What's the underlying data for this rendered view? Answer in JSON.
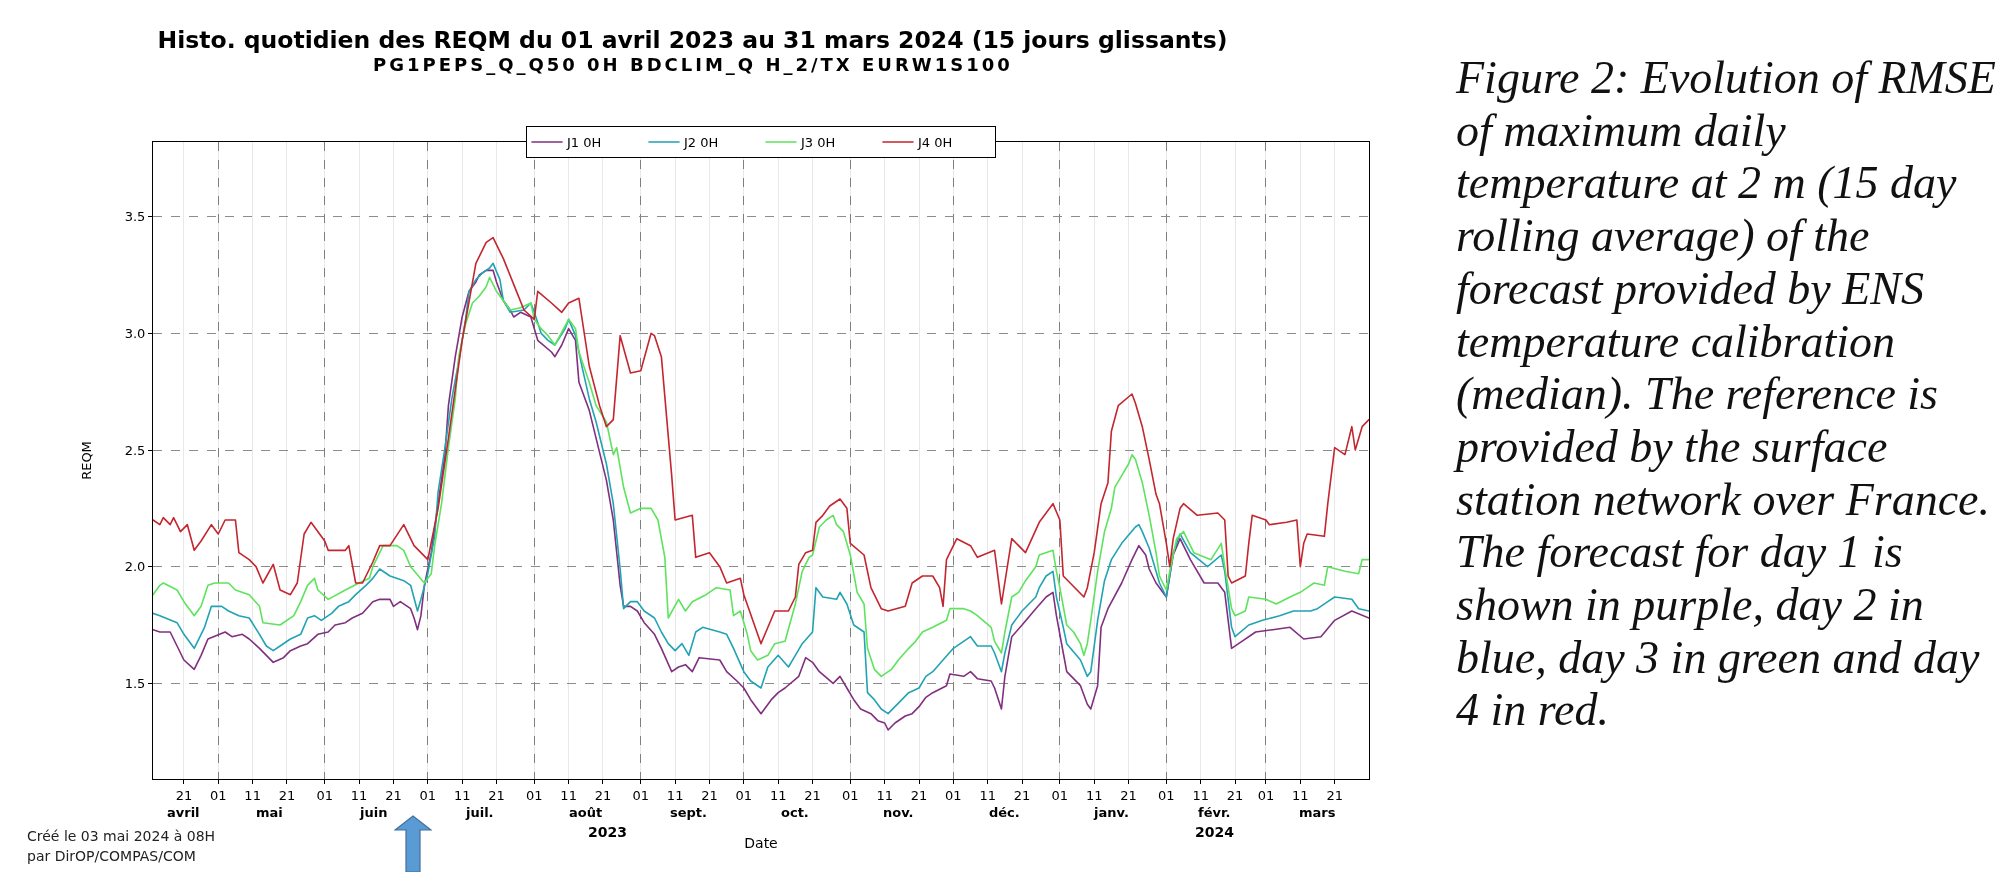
{
  "chart_data": {
    "type": "line",
    "title": "Histo. quotidien des REQM du 01 avril 2023 au 31 mars 2024 (15 jours glissants)",
    "subtitle": "PG1PEPS_Q_Q50 0H BDCLIM_Q H_2/TX EURW1S100",
    "xlabel": "Date",
    "ylabel": "REQM",
    "annotations": [
      "Créé le 03 mai 2024 à 08H",
      "par DirOP/COMPAS/COM",
      "Figure 2: Evolution of RMSE of maximum daily temperature at 2 m (15 day rolling average) of the forecast provided by ENS temperature calibration (median). The reference is provided by the surface station network over France. The forecast for day 1 is shown in purple, day 2 in blue, day 3 in green and day 4 in red.",
      "2023",
      "2024"
    ],
    "xlim": [
      "2023-04-12",
      "2024-03-31"
    ],
    "xticks": [
      {
        "value": "2023-04-21",
        "label": "21"
      },
      {
        "value": "2023-05-01",
        "label": "01"
      },
      {
        "value": "2023-05-11",
        "label": "11"
      },
      {
        "value": "2023-05-21",
        "label": "21"
      },
      {
        "value": "2023-06-01",
        "label": "01"
      },
      {
        "value": "2023-06-11",
        "label": "11"
      },
      {
        "value": "2023-06-21",
        "label": "21"
      },
      {
        "value": "2023-07-01",
        "label": "01"
      },
      {
        "value": "2023-07-11",
        "label": "11"
      },
      {
        "value": "2023-07-21",
        "label": "21"
      },
      {
        "value": "2023-08-01",
        "label": "01"
      },
      {
        "value": "2023-08-11",
        "label": "11"
      },
      {
        "value": "2023-08-21",
        "label": "21"
      },
      {
        "value": "2023-09-01",
        "label": "01"
      },
      {
        "value": "2023-09-11",
        "label": "11"
      },
      {
        "value": "2023-09-21",
        "label": "21"
      },
      {
        "value": "2023-10-01",
        "label": "01"
      },
      {
        "value": "2023-10-11",
        "label": "11"
      },
      {
        "value": "2023-10-21",
        "label": "21"
      },
      {
        "value": "2023-11-01",
        "label": "01"
      },
      {
        "value": "2023-11-11",
        "label": "11"
      },
      {
        "value": "2023-11-21",
        "label": "21"
      },
      {
        "value": "2023-12-01",
        "label": "01"
      },
      {
        "value": "2023-12-11",
        "label": "11"
      },
      {
        "value": "2023-12-21",
        "label": "21"
      },
      {
        "value": "2024-01-01",
        "label": "01"
      },
      {
        "value": "2024-01-11",
        "label": "11"
      },
      {
        "value": "2024-01-21",
        "label": "21"
      },
      {
        "value": "2024-02-01",
        "label": "01"
      },
      {
        "value": "2024-02-11",
        "label": "11"
      },
      {
        "value": "2024-02-21",
        "label": "21"
      },
      {
        "value": "2024-03-01",
        "label": "01"
      },
      {
        "value": "2024-03-11",
        "label": "11"
      },
      {
        "value": "2024-03-21",
        "label": "21"
      }
    ],
    "x2lim": [
      "2023-04-12",
      "2024-03-31"
    ],
    "x2ticks": [
      {
        "value": "2023-04-21",
        "label": "avril"
      },
      {
        "value": "2023-05-16",
        "label": "mai"
      },
      {
        "value": "2023-06-15",
        "label": "juin"
      },
      {
        "value": "2023-07-16",
        "label": "juil."
      },
      {
        "value": "2023-08-16",
        "label": "août"
      },
      {
        "value": "2023-09-15",
        "label": "sept."
      },
      {
        "value": "2023-10-16",
        "label": "oct."
      },
      {
        "value": "2023-11-15",
        "label": "nov."
      },
      {
        "value": "2023-12-16",
        "label": "déc."
      },
      {
        "value": "2024-01-16",
        "label": "janv."
      },
      {
        "value": "2024-02-15",
        "label": "févr."
      },
      {
        "value": "2024-03-16",
        "label": "mars"
      }
    ],
    "ylim": [
      1.09,
      3.82
    ],
    "yticks": [
      1.5,
      {
        "value": 2,
        "label": "2.0"
      },
      2.5,
      {
        "value": 3,
        "label": "3.0"
      },
      3.5
    ],
    "grid": true,
    "legend": "top",
    "series": [
      {
        "name": "J1 0H",
        "color": "#80307f",
        "x": [
          "2023-04-12",
          "2023-04-14",
          "2023-04-17",
          "2023-04-19",
          "2023-04-21",
          "2023-04-24",
          "2023-04-26",
          "2023-04-28",
          "2023-05-03",
          "2023-05-05",
          "2023-05-08",
          "2023-05-10",
          "2023-05-13",
          "2023-05-15",
          "2023-05-17",
          "2023-05-20",
          "2023-05-22",
          "2023-05-25",
          "2023-05-27",
          "2023-05-30",
          "2023-06-02",
          "2023-06-04",
          "2023-06-07",
          "2023-06-09",
          "2023-06-12",
          "2023-06-15",
          "2023-06-17",
          "2023-06-20",
          "2023-06-21",
          "2023-06-23",
          "2023-06-26",
          "2023-06-27",
          "2023-06-28",
          "2023-06-29",
          "2023-06-30",
          "2023-07-02",
          "2023-07-04",
          "2023-07-06",
          "2023-07-07",
          "2023-07-09",
          "2023-07-11",
          "2023-07-13",
          "2023-07-15",
          "2023-07-16",
          "2023-07-18",
          "2023-07-20",
          "2023-07-21",
          "2023-07-23",
          "2023-07-25",
          "2023-07-26",
          "2023-07-28",
          "2023-07-31",
          "2023-08-02",
          "2023-08-06",
          "2023-08-07",
          "2023-08-09",
          "2023-08-11",
          "2023-08-13",
          "2023-08-14",
          "2023-08-17",
          "2023-08-19",
          "2023-08-22",
          "2023-08-24",
          "2023-08-26",
          "2023-08-27",
          "2023-08-29",
          "2023-08-31",
          "2023-09-02",
          "2023-09-05",
          "2023-09-07",
          "2023-09-10",
          "2023-09-12",
          "2023-09-14",
          "2023-09-16",
          "2023-09-18",
          "2023-09-24",
          "2023-09-26",
          "2023-09-29",
          "2023-10-01",
          "2023-10-03",
          "2023-10-06",
          "2023-10-09",
          "2023-10-11",
          "2023-10-13",
          "2023-10-17",
          "2023-10-19",
          "2023-10-21",
          "2023-10-23",
          "2023-10-27",
          "2023-10-29",
          "2023-10-31",
          "2023-11-02",
          "2023-11-04",
          "2023-11-07",
          "2023-11-09",
          "2023-11-11",
          "2023-11-12",
          "2023-11-14",
          "2023-11-17",
          "2023-11-19",
          "2023-11-21",
          "2023-11-23",
          "2023-11-25",
          "2023-11-29",
          "2023-11-30",
          "2023-12-04",
          "2023-12-06",
          "2023-12-08",
          "2023-12-12",
          "2023-12-13",
          "2023-12-15",
          "2023-12-16",
          "2023-12-18",
          "2023-12-21",
          "2023-12-25",
          "2023-12-28",
          "2023-12-30",
          "2023-12-31",
          "2024-01-02",
          "2024-01-03",
          "2024-01-07",
          "2024-01-09",
          "2024-01-10",
          "2024-01-12",
          "2024-01-13",
          "2024-01-15",
          "2024-01-19",
          "2024-01-22",
          "2024-01-24",
          "2024-01-26",
          "2024-01-27",
          "2024-01-29",
          "2024-02-01",
          "2024-02-03",
          "2024-02-05",
          "2024-02-08",
          "2024-02-12",
          "2024-02-16",
          "2024-02-18",
          "2024-02-20",
          "2024-02-23",
          "2024-02-27",
          "2024-03-03",
          "2024-03-08",
          "2024-03-12",
          "2024-03-17",
          "2024-03-21",
          "2024-03-26",
          "2024-03-31"
        ],
        "values": [
          1.73,
          1.72,
          1.72,
          1.66,
          1.6,
          1.56,
          1.62,
          1.69,
          1.72,
          1.7,
          1.71,
          1.69,
          1.65,
          1.62,
          1.59,
          1.61,
          1.64,
          1.66,
          1.67,
          1.71,
          1.72,
          1.75,
          1.76,
          1.78,
          1.8,
          1.85,
          1.86,
          1.86,
          1.83,
          1.85,
          1.82,
          1.78,
          1.73,
          1.79,
          1.92,
          2.06,
          2.27,
          2.48,
          2.69,
          2.9,
          3.07,
          3.18,
          3.22,
          3.25,
          3.27,
          3.27,
          3.22,
          3.14,
          3.1,
          3.07,
          3.09,
          3.07,
          2.97,
          2.92,
          2.9,
          2.95,
          3.02,
          2.97,
          2.79,
          2.67,
          2.55,
          2.37,
          2.2,
          1.92,
          1.83,
          1.83,
          1.81,
          1.76,
          1.71,
          1.65,
          1.55,
          1.57,
          1.58,
          1.55,
          1.61,
          1.6,
          1.55,
          1.51,
          1.48,
          1.43,
          1.37,
          1.43,
          1.46,
          1.48,
          1.53,
          1.61,
          1.59,
          1.55,
          1.5,
          1.53,
          1.48,
          1.43,
          1.39,
          1.37,
          1.34,
          1.33,
          1.3,
          1.33,
          1.36,
          1.37,
          1.4,
          1.44,
          1.46,
          1.49,
          1.54,
          1.53,
          1.55,
          1.52,
          1.51,
          1.48,
          1.39,
          1.53,
          1.7,
          1.75,
          1.82,
          1.87,
          1.89,
          1.79,
          1.63,
          1.55,
          1.49,
          1.41,
          1.39,
          1.49,
          1.74,
          1.82,
          1.93,
          2.03,
          2.09,
          2.05,
          1.99,
          1.93,
          1.87,
          2.05,
          2.12,
          2.03,
          1.93,
          1.93,
          1.89,
          1.65,
          1.68,
          1.72,
          1.73,
          1.74,
          1.69,
          1.7,
          1.77,
          1.81,
          1.78
        ]
      },
      {
        "name": "J2 0H",
        "color": "#22a3b3",
        "x": [
          "2023-04-12",
          "2023-04-14",
          "2023-04-19",
          "2023-04-21",
          "2023-04-24",
          "2023-04-27",
          "2023-04-29",
          "2023-05-02",
          "2023-05-04",
          "2023-05-07",
          "2023-05-10",
          "2023-05-13",
          "2023-05-15",
          "2023-05-17",
          "2023-05-19",
          "2023-05-22",
          "2023-05-25",
          "2023-05-27",
          "2023-05-29",
          "2023-05-31",
          "2023-06-03",
          "2023-06-05",
          "2023-06-08",
          "2023-06-10",
          "2023-06-13",
          "2023-06-15",
          "2023-06-17",
          "2023-06-20",
          "2023-06-24",
          "2023-06-26",
          "2023-06-28",
          "2023-06-29",
          "2023-07-01",
          "2023-07-03",
          "2023-07-04",
          "2023-07-06",
          "2023-07-08",
          "2023-07-10",
          "2023-07-12",
          "2023-07-13",
          "2023-07-15",
          "2023-07-17",
          "2023-07-19",
          "2023-07-20",
          "2023-07-22",
          "2023-07-23",
          "2023-07-25",
          "2023-07-29",
          "2023-07-31",
          "2023-08-01",
          "2023-08-03",
          "2023-08-05",
          "2023-08-07",
          "2023-08-10",
          "2023-08-11",
          "2023-08-13",
          "2023-08-15",
          "2023-08-17",
          "2023-08-19",
          "2023-08-22",
          "2023-08-24",
          "2023-08-26",
          "2023-08-27",
          "2023-08-29",
          "2023-08-31",
          "2023-09-02",
          "2023-09-05",
          "2023-09-07",
          "2023-09-09",
          "2023-09-11",
          "2023-09-13",
          "2023-09-15",
          "2023-09-17",
          "2023-09-19",
          "2023-09-24",
          "2023-09-26",
          "2023-09-28",
          "2023-10-01",
          "2023-10-03",
          "2023-10-06",
          "2023-10-08",
          "2023-10-11",
          "2023-10-14",
          "2023-10-16",
          "2023-10-18",
          "2023-10-21",
          "2023-10-22",
          "2023-10-24",
          "2023-10-28",
          "2023-10-29",
          "2023-10-31",
          "2023-11-02",
          "2023-11-05",
          "2023-11-06",
          "2023-11-08",
          "2023-11-10",
          "2023-11-12",
          "2023-11-16",
          "2023-11-18",
          "2023-11-21",
          "2023-11-23",
          "2023-11-25",
          "2023-11-28",
          "2023-12-01",
          "2023-12-06",
          "2023-12-08",
          "2023-12-12",
          "2023-12-13",
          "2023-12-15",
          "2023-12-16",
          "2023-12-18",
          "2023-12-21",
          "2023-12-25",
          "2023-12-26",
          "2023-12-28",
          "2023-12-30",
          "2023-12-31",
          "2024-01-02",
          "2024-01-03",
          "2024-01-07",
          "2024-01-09",
          "2024-01-10",
          "2024-01-12",
          "2024-01-14",
          "2024-01-16",
          "2024-01-19",
          "2024-01-23",
          "2024-01-24",
          "2024-01-25",
          "2024-01-27",
          "2024-01-29",
          "2024-01-30",
          "2024-02-01",
          "2024-02-03",
          "2024-02-05",
          "2024-02-08",
          "2024-02-13",
          "2024-02-17",
          "2024-02-18",
          "2024-02-20",
          "2024-02-21",
          "2024-02-25",
          "2024-02-29",
          "2024-03-05",
          "2024-03-09",
          "2024-03-14",
          "2024-03-16",
          "2024-03-19",
          "2024-03-21",
          "2024-03-26",
          "2024-03-28",
          "2024-03-31"
        ],
        "values": [
          1.8,
          1.79,
          1.76,
          1.71,
          1.65,
          1.74,
          1.83,
          1.83,
          1.81,
          1.79,
          1.78,
          1.71,
          1.66,
          1.64,
          1.66,
          1.69,
          1.71,
          1.78,
          1.79,
          1.77,
          1.8,
          1.83,
          1.85,
          1.88,
          1.92,
          1.95,
          1.99,
          1.96,
          1.94,
          1.92,
          1.81,
          1.86,
          1.97,
          2.13,
          2.32,
          2.51,
          2.72,
          2.88,
          3.06,
          3.18,
          3.23,
          3.26,
          3.28,
          3.3,
          3.23,
          3.14,
          3.09,
          3.1,
          3.13,
          3.09,
          3.0,
          2.97,
          2.95,
          3.02,
          3.06,
          2.99,
          2.85,
          2.72,
          2.62,
          2.44,
          2.27,
          1.99,
          1.82,
          1.85,
          1.85,
          1.81,
          1.78,
          1.72,
          1.67,
          1.64,
          1.67,
          1.62,
          1.72,
          1.74,
          1.72,
          1.71,
          1.65,
          1.55,
          1.51,
          1.48,
          1.57,
          1.62,
          1.57,
          1.62,
          1.67,
          1.72,
          1.91,
          1.87,
          1.86,
          1.89,
          1.84,
          1.75,
          1.72,
          1.46,
          1.43,
          1.39,
          1.37,
          1.43,
          1.46,
          1.48,
          1.53,
          1.55,
          1.6,
          1.65,
          1.7,
          1.66,
          1.66,
          1.63,
          1.55,
          1.63,
          1.75,
          1.81,
          1.87,
          1.91,
          1.96,
          1.98,
          1.87,
          1.74,
          1.67,
          1.6,
          1.53,
          1.55,
          1.77,
          1.94,
          2.03,
          2.1,
          2.17,
          2.18,
          2.15,
          2.08,
          1.98,
          1.93,
          1.87,
          2.06,
          2.14,
          2.06,
          2.0,
          2.05,
          1.98,
          1.74,
          1.7,
          1.75,
          1.77,
          1.79,
          1.81,
          1.81,
          1.82,
          1.85,
          1.87,
          1.86,
          1.82,
          1.81
        ]
      },
      {
        "name": "J3 0H",
        "color": "#5ee35e",
        "x": [
          "2023-04-12",
          "2023-04-14",
          "2023-04-15",
          "2023-04-19",
          "2023-04-21",
          "2023-04-24",
          "2023-04-26",
          "2023-04-28",
          "2023-04-30",
          "2023-05-04",
          "2023-05-06",
          "2023-05-10",
          "2023-05-13",
          "2023-05-14",
          "2023-05-19",
          "2023-05-23",
          "2023-05-25",
          "2023-05-27",
          "2023-05-29",
          "2023-05-30",
          "2023-06-02",
          "2023-06-07",
          "2023-06-11",
          "2023-06-14",
          "2023-06-15",
          "2023-06-18",
          "2023-06-22",
          "2023-06-24",
          "2023-06-26",
          "2023-06-30",
          "2023-07-02",
          "2023-07-03",
          "2023-07-05",
          "2023-07-07",
          "2023-07-09",
          "2023-07-10",
          "2023-07-12",
          "2023-07-14",
          "2023-07-16",
          "2023-07-18",
          "2023-07-19",
          "2023-07-21",
          "2023-07-23",
          "2023-07-25",
          "2023-07-28",
          "2023-07-31",
          "2023-08-01",
          "2023-08-03",
          "2023-08-05",
          "2023-08-07",
          "2023-08-11",
          "2023-08-13",
          "2023-08-14",
          "2023-08-17",
          "2023-08-19",
          "2023-08-22",
          "2023-08-24",
          "2023-08-25",
          "2023-08-27",
          "2023-08-29",
          "2023-09-01",
          "2023-09-04",
          "2023-09-06",
          "2023-09-08",
          "2023-09-09",
          "2023-09-12",
          "2023-09-14",
          "2023-09-16",
          "2023-09-20",
          "2023-09-23",
          "2023-09-27",
          "2023-09-28",
          "2023-09-30",
          "2023-10-02",
          "2023-10-03",
          "2023-10-05",
          "2023-10-08",
          "2023-10-10",
          "2023-10-13",
          "2023-10-16",
          "2023-10-18",
          "2023-10-20",
          "2023-10-21",
          "2023-10-23",
          "2023-10-25",
          "2023-10-27",
          "2023-10-28",
          "2023-10-30",
          "2023-11-01",
          "2023-11-03",
          "2023-11-05",
          "2023-11-06",
          "2023-11-08",
          "2023-11-10",
          "2023-11-13",
          "2023-11-15",
          "2023-11-18",
          "2023-11-20",
          "2023-11-22",
          "2023-11-25",
          "2023-11-29",
          "2023-11-30",
          "2023-12-04",
          "2023-12-06",
          "2023-12-08",
          "2023-12-12",
          "2023-12-13",
          "2023-12-15",
          "2023-12-16",
          "2023-12-18",
          "2023-12-20",
          "2023-12-22",
          "2023-12-25",
          "2023-12-26",
          "2023-12-30",
          "2023-12-31",
          "2024-01-01",
          "2024-01-03",
          "2024-01-05",
          "2024-01-07",
          "2024-01-08",
          "2024-01-09",
          "2024-01-10",
          "2024-01-12",
          "2024-01-14",
          "2024-01-16",
          "2024-01-17",
          "2024-01-19",
          "2024-01-21",
          "2024-01-22",
          "2024-01-23",
          "2024-01-25",
          "2024-01-27",
          "2024-01-29",
          "2024-01-30",
          "2024-02-01",
          "2024-02-02",
          "2024-02-04",
          "2024-02-06",
          "2024-02-09",
          "2024-02-14",
          "2024-02-17",
          "2024-02-18",
          "2024-02-20",
          "2024-02-21",
          "2024-02-24",
          "2024-02-25",
          "2024-03-01",
          "2024-03-04",
          "2024-03-08",
          "2024-03-11",
          "2024-03-13",
          "2024-03-15",
          "2024-03-18",
          "2024-03-19",
          "2024-03-24",
          "2024-03-28",
          "2024-03-29",
          "2024-03-31"
        ],
        "values": [
          1.88,
          1.92,
          1.93,
          1.9,
          1.85,
          1.79,
          1.83,
          1.92,
          1.93,
          1.93,
          1.9,
          1.88,
          1.83,
          1.76,
          1.75,
          1.79,
          1.85,
          1.92,
          1.95,
          1.9,
          1.86,
          1.9,
          1.93,
          1.95,
          2.0,
          2.09,
          2.09,
          2.07,
          2.0,
          1.93,
          1.97,
          2.09,
          2.27,
          2.51,
          2.72,
          2.9,
          3.04,
          3.13,
          3.16,
          3.2,
          3.24,
          3.18,
          3.14,
          3.1,
          3.11,
          3.13,
          3.06,
          3.02,
          2.99,
          2.95,
          3.06,
          3.02,
          2.92,
          2.79,
          2.69,
          2.62,
          2.48,
          2.51,
          2.34,
          2.23,
          2.25,
          2.25,
          2.2,
          2.04,
          1.78,
          1.86,
          1.81,
          1.85,
          1.88,
          1.91,
          1.9,
          1.79,
          1.81,
          1.71,
          1.64,
          1.6,
          1.62,
          1.67,
          1.68,
          1.84,
          1.98,
          2.04,
          2.05,
          2.17,
          2.2,
          2.22,
          2.18,
          2.15,
          2.05,
          1.89,
          1.84,
          1.65,
          1.56,
          1.53,
          1.56,
          1.6,
          1.65,
          1.68,
          1.72,
          1.74,
          1.77,
          1.82,
          1.82,
          1.81,
          1.79,
          1.74,
          1.68,
          1.63,
          1.72,
          1.87,
          1.89,
          1.94,
          2.0,
          2.05,
          2.07,
          1.98,
          1.91,
          1.75,
          1.72,
          1.67,
          1.62,
          1.67,
          1.77,
          1.98,
          2.15,
          2.25,
          2.34,
          2.39,
          2.44,
          2.48,
          2.46,
          2.36,
          2.22,
          2.06,
          1.96,
          1.9,
          1.98,
          2.12,
          2.15,
          2.06,
          2.03,
          2.1,
          2.0,
          1.82,
          1.79,
          1.81,
          1.87,
          1.86,
          1.84,
          1.87,
          1.89,
          1.91,
          1.93,
          1.92,
          2.0,
          1.98,
          1.97,
          2.03,
          2.03
        ]
      },
      {
        "name": "J4 0H",
        "color": "#c3262f",
        "x": [
          "2023-04-12",
          "2023-04-14",
          "2023-04-15",
          "2023-04-17",
          "2023-04-18",
          "2023-04-20",
          "2023-04-22",
          "2023-04-24",
          "2023-04-26",
          "2023-04-29",
          "2023-05-01",
          "2023-05-03",
          "2023-05-06",
          "2023-05-07",
          "2023-05-10",
          "2023-05-12",
          "2023-05-14",
          "2023-05-17",
          "2023-05-19",
          "2023-05-22",
          "2023-05-24",
          "2023-05-26",
          "2023-05-28",
          "2023-06-01",
          "2023-06-02",
          "2023-06-07",
          "2023-06-08",
          "2023-06-10",
          "2023-06-12",
          "2023-06-15",
          "2023-06-17",
          "2023-06-20",
          "2023-06-24",
          "2023-06-27",
          "2023-07-01",
          "2023-07-04",
          "2023-07-07",
          "2023-07-11",
          "2023-07-15",
          "2023-07-18",
          "2023-07-20",
          "2023-07-23",
          "2023-07-26",
          "2023-07-29",
          "2023-08-01",
          "2023-08-02",
          "2023-08-06",
          "2023-08-09",
          "2023-08-11",
          "2023-08-14",
          "2023-08-17",
          "2023-08-20",
          "2023-08-22",
          "2023-08-24",
          "2023-08-26",
          "2023-08-29",
          "2023-09-01",
          "2023-09-04",
          "2023-09-05",
          "2023-09-07",
          "2023-09-10",
          "2023-09-11",
          "2023-09-16",
          "2023-09-17",
          "2023-09-21",
          "2023-09-24",
          "2023-09-26",
          "2023-09-30",
          "2023-10-01",
          "2023-10-06",
          "2023-10-10",
          "2023-10-14",
          "2023-10-16",
          "2023-10-17",
          "2023-10-19",
          "2023-10-21",
          "2023-10-22",
          "2023-10-24",
          "2023-10-26",
          "2023-10-29",
          "2023-10-31",
          "2023-11-01",
          "2023-11-05",
          "2023-11-07",
          "2023-11-10",
          "2023-11-12",
          "2023-11-17",
          "2023-11-19",
          "2023-11-22",
          "2023-11-25",
          "2023-11-27",
          "2023-11-28",
          "2023-11-29",
          "2023-12-02",
          "2023-12-06",
          "2023-12-08",
          "2023-12-13",
          "2023-12-15",
          "2023-12-18",
          "2023-12-22",
          "2023-12-26",
          "2023-12-30",
          "2024-01-01",
          "2024-01-02",
          "2024-01-04",
          "2024-01-08",
          "2024-01-09",
          "2024-01-11",
          "2024-01-13",
          "2024-01-15",
          "2024-01-16",
          "2024-01-18",
          "2024-01-22",
          "2024-01-23",
          "2024-01-25",
          "2024-01-27",
          "2024-01-29",
          "2024-01-30",
          "2024-02-01",
          "2024-02-02",
          "2024-02-03",
          "2024-02-05",
          "2024-02-06",
          "2024-02-10",
          "2024-02-16",
          "2024-02-18",
          "2024-02-19",
          "2024-02-20",
          "2024-02-24",
          "2024-02-25",
          "2024-02-26",
          "2024-03-01",
          "2024-03-02",
          "2024-03-07",
          "2024-03-10",
          "2024-03-11",
          "2024-03-12",
          "2024-03-13",
          "2024-03-18",
          "2024-03-19",
          "2024-03-21",
          "2024-03-24",
          "2024-03-26",
          "2024-03-27",
          "2024-03-29",
          "2024-03-31"
        ],
        "values": [
          2.2,
          2.18,
          2.21,
          2.18,
          2.21,
          2.15,
          2.18,
          2.07,
          2.11,
          2.18,
          2.14,
          2.2,
          2.2,
          2.06,
          2.03,
          2.0,
          1.93,
          2.01,
          1.9,
          1.88,
          1.93,
          2.14,
          2.19,
          2.11,
          2.07,
          2.07,
          2.09,
          1.93,
          1.93,
          2.02,
          2.09,
          2.09,
          2.18,
          2.09,
          2.03,
          2.25,
          2.55,
          2.97,
          3.3,
          3.39,
          3.41,
          3.32,
          3.21,
          3.1,
          3.06,
          3.18,
          3.13,
          3.09,
          3.13,
          3.15,
          2.86,
          2.69,
          2.6,
          2.63,
          2.99,
          2.83,
          2.84,
          3.0,
          2.99,
          2.9,
          2.39,
          2.2,
          2.22,
          2.04,
          2.06,
          2.0,
          1.93,
          1.95,
          1.88,
          1.67,
          1.81,
          1.81,
          1.87,
          2.01,
          2.06,
          2.07,
          2.19,
          2.22,
          2.26,
          2.29,
          2.25,
          2.1,
          2.05,
          1.91,
          1.82,
          1.81,
          1.83,
          1.93,
          1.96,
          1.96,
          1.91,
          1.83,
          2.03,
          2.12,
          2.09,
          2.04,
          2.07,
          1.84,
          2.12,
          2.06,
          2.19,
          2.27,
          2.2,
          1.96,
          1.93,
          1.87,
          1.91,
          2.06,
          2.27,
          2.36,
          2.58,
          2.69,
          2.74,
          2.7,
          2.6,
          2.46,
          2.31,
          2.27,
          2.1,
          2.0,
          2.12,
          2.25,
          2.27,
          2.22,
          2.23,
          2.2,
          1.96,
          1.93,
          1.96,
          2.1,
          2.22,
          2.2,
          2.18,
          2.19,
          2.2,
          2.0,
          2.1,
          2.14,
          2.13,
          2.27,
          2.51,
          2.48,
          2.6,
          2.5,
          2.6,
          2.63
        ]
      }
    ]
  }
}
